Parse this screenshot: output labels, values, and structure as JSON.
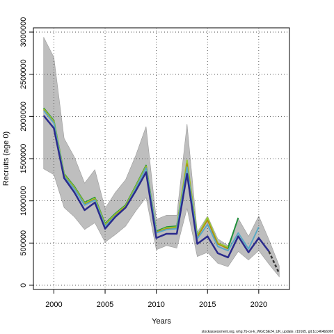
{
  "chart_data": {
    "type": "line",
    "xlabel": "Years",
    "ylabel": "Recruits (age 0)",
    "xlim": [
      1998,
      2023
    ],
    "ylim": [
      -50000,
      3050000
    ],
    "x_ticks": [
      2000,
      2005,
      2010,
      2015,
      2020
    ],
    "y_ticks": [
      0,
      500000,
      1000000,
      1500000,
      2000000,
      2500000,
      3000000
    ],
    "x_tick_labels": [
      "2000",
      "2005",
      "2010",
      "2015",
      "2020"
    ],
    "y_tick_labels": [
      "0",
      "500000",
      "1000000",
      "1500000",
      "2000000",
      "2500000",
      "3000000"
    ],
    "grid": "dotted",
    "legend": "none",
    "uncertainty_band": {
      "color": "#bebebe",
      "x": [
        1999,
        2000,
        2001,
        2002,
        2003,
        2004,
        2005,
        2006,
        2007,
        2008,
        2009,
        2010,
        2011,
        2012,
        2013,
        2014,
        2015,
        2016,
        2017,
        2018,
        2019,
        2020,
        2021,
        2022
      ],
      "upper": [
        2940000,
        2700000,
        1740000,
        1520000,
        1210000,
        1370000,
        910000,
        1100000,
        1250000,
        1540000,
        1880000,
        780000,
        830000,
        830000,
        1910000,
        630000,
        820000,
        550000,
        470000,
        790000,
        580000,
        820000,
        540000,
        230000
      ],
      "lower": [
        1380000,
        1310000,
        920000,
        810000,
        660000,
        740000,
        510000,
        600000,
        700000,
        880000,
        1040000,
        420000,
        470000,
        440000,
        910000,
        340000,
        390000,
        260000,
        220000,
        400000,
        300000,
        410000,
        250000,
        100000
      ]
    },
    "x": [
      1999,
      2000,
      2001,
      2002,
      2003,
      2004,
      2005,
      2006,
      2007,
      2008,
      2009,
      2010,
      2011,
      2012,
      2013,
      2014,
      2015,
      2016,
      2017,
      2018,
      2019,
      2020,
      2021,
      2022
    ],
    "series": [
      {
        "color": "#1f8f3a",
        "width": 2,
        "values": [
          2100000,
          1950000,
          1320000,
          1170000,
          980000,
          1040000,
          730000,
          850000,
          950000,
          1180000,
          1420000,
          640000,
          690000,
          700000,
          1450000,
          590000,
          780000,
          490000,
          440000,
          800000,
          null,
          null,
          null,
          null
        ]
      },
      {
        "color": "#9acd32",
        "width": 2,
        "values": [
          2090000,
          1940000,
          1310000,
          1160000,
          970000,
          1030000,
          720000,
          840000,
          940000,
          1170000,
          1410000,
          630000,
          680000,
          690000,
          1480000,
          580000,
          800000,
          500000,
          450000,
          null,
          null,
          null,
          null,
          null
        ]
      },
      {
        "color": "#b8860b",
        "width": 1.5,
        "values": [
          2080000,
          1930000,
          1300000,
          1150000,
          960000,
          1020000,
          710000,
          830000,
          930000,
          1160000,
          1400000,
          630000,
          670000,
          680000,
          1440000,
          570000,
          770000,
          490000,
          430000,
          null,
          null,
          null,
          null,
          null
        ]
      },
      {
        "color": "#5aa9c4",
        "width": 2,
        "values": [
          2070000,
          1920000,
          1290000,
          1140000,
          950000,
          1010000,
          700000,
          820000,
          920000,
          1150000,
          1390000,
          620000,
          660000,
          670000,
          1400000,
          550000,
          720000,
          460000,
          410000,
          620000,
          430000,
          690000,
          null,
          null
        ]
      },
      {
        "color": "#2b2b8c",
        "width": 2.5,
        "values": [
          2010000,
          1860000,
          1270000,
          1100000,
          890000,
          980000,
          670000,
          810000,
          920000,
          1120000,
          1340000,
          560000,
          610000,
          610000,
          1320000,
          490000,
          580000,
          380000,
          330000,
          580000,
          390000,
          560000,
          400000,
          null
        ]
      }
    ],
    "projection": {
      "color": "#333333",
      "dash": "dashed",
      "x": [
        2021,
        2022
      ],
      "values": [
        400000,
        140000
      ]
    },
    "footnote": "stockassessment.org, whg.7b-ce-k_WGCSE24_UK_update, r19165, git:1cc464b606f"
  }
}
